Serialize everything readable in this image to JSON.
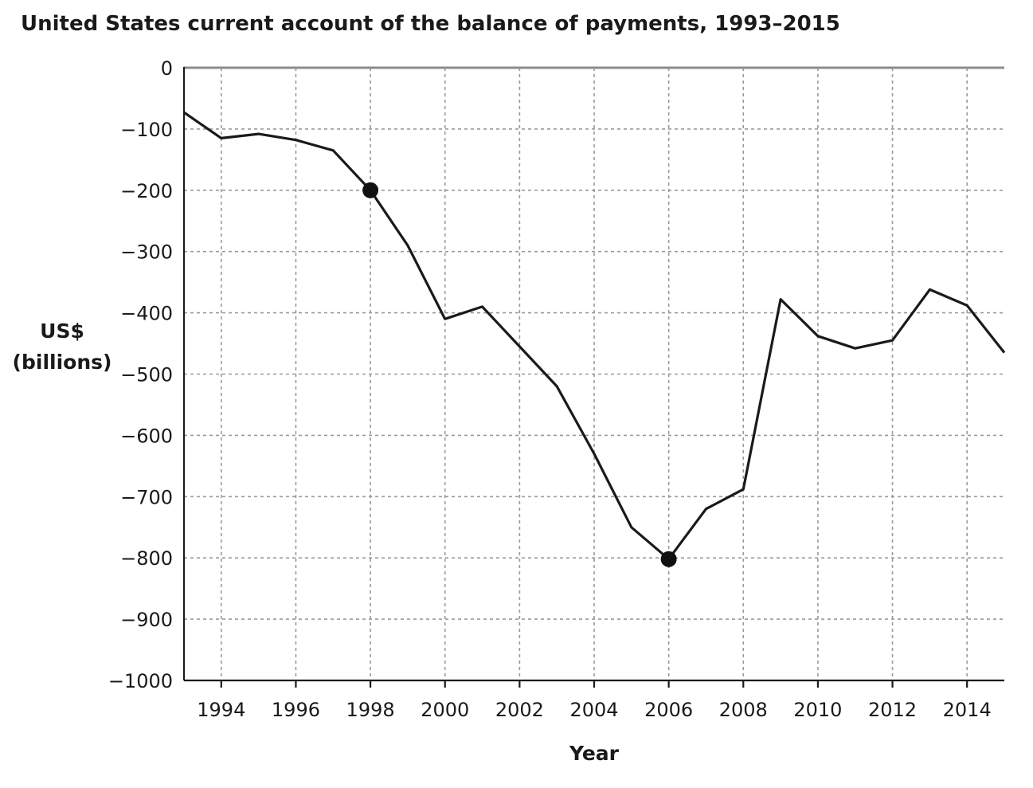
{
  "chart_data": {
    "type": "line",
    "title": "United States current account of the balance of payments, 1993–2015",
    "xlabel": "Year",
    "ylabel_lines": [
      "US$",
      "(billions)"
    ],
    "xlim": [
      1993,
      2015
    ],
    "ylim": [
      -1000,
      0
    ],
    "x_ticks": [
      1994,
      1996,
      1998,
      2000,
      2002,
      2004,
      2006,
      2008,
      2010,
      2012,
      2014
    ],
    "x_tick_labels": [
      "1994",
      "1996",
      "1998",
      "2000",
      "2002",
      "2004",
      "2006",
      "2008",
      "2010",
      "2012",
      "2014"
    ],
    "y_ticks": [
      0,
      -100,
      -200,
      -300,
      -400,
      -500,
      -600,
      -700,
      -800,
      -900,
      -1000
    ],
    "y_tick_labels": [
      "0",
      "−100",
      "−200",
      "−300",
      "−400",
      "−500",
      "−600",
      "−700",
      "−800",
      "−900",
      "−1000"
    ],
    "grid": true,
    "series": [
      {
        "x": [
          1993,
          1994,
          1995,
          1996,
          1997,
          1998,
          1999,
          2000,
          2001,
          2002,
          2003,
          2004,
          2005,
          2006,
          2007,
          2008,
          2009,
          2010,
          2011,
          2012,
          2013,
          2014,
          2015
        ],
        "values": [
          -73,
          -115,
          -108,
          -118,
          -135,
          -200,
          -290,
          -410,
          -390,
          -455,
          -520,
          -630,
          -750,
          -802,
          -720,
          -688,
          -378,
          -438,
          -458,
          -445,
          -362,
          -388,
          -465
        ],
        "color": "#1a1a1a"
      }
    ],
    "highlighted_points": [
      {
        "x": 1998,
        "y": -200
      },
      {
        "x": 2006,
        "y": -802
      }
    ]
  }
}
